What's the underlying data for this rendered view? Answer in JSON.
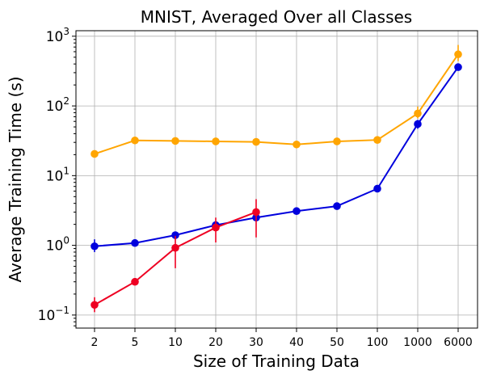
{
  "chart_data": {
    "type": "line",
    "title": "MNIST, Averaged Over all Classes",
    "xlabel": "Size of Training Data",
    "ylabel": "Average Training Time (s)",
    "x_scale": "categorical",
    "y_scale": "log",
    "ylim": [
      0.065,
      1200
    ],
    "grid": true,
    "categories": [
      "2",
      "5",
      "10",
      "20",
      "30",
      "40",
      "50",
      "100",
      "1000",
      "6000"
    ],
    "y_ticks": [
      {
        "value": 0.1,
        "base": "10",
        "exp": "−1"
      },
      {
        "value": 1,
        "base": "10",
        "exp": "0"
      },
      {
        "value": 10,
        "base": "10",
        "exp": "1"
      },
      {
        "value": 100,
        "base": "10",
        "exp": "2"
      },
      {
        "value": 1000,
        "base": "10",
        "exp": "3"
      }
    ],
    "series": [
      {
        "color": "#ffa500",
        "values": [
          20.5,
          32,
          31.5,
          31,
          30.5,
          28,
          31,
          32.5,
          78,
          550
        ],
        "err_low": [
          1.5,
          3,
          2.5,
          3,
          2.5,
          2.5,
          3,
          3,
          12,
          110
        ],
        "err_high": [
          1.5,
          3,
          2.5,
          3,
          2.5,
          2.5,
          3,
          3,
          20,
          200
        ]
      },
      {
        "color": "#0000dd",
        "values": [
          0.97,
          1.08,
          1.4,
          1.95,
          2.5,
          3.1,
          3.65,
          6.5,
          55,
          360
        ],
        "err_low": [
          0.17,
          0.08,
          0.1,
          0.15,
          0.2,
          0.2,
          0.2,
          0.5,
          8,
          30
        ],
        "err_high": [
          0.25,
          0.08,
          0.1,
          0.15,
          0.2,
          0.2,
          0.2,
          0.5,
          8,
          30
        ]
      },
      {
        "color": "#ee0022",
        "values": [
          0.14,
          0.3,
          0.92,
          1.8,
          3.0,
          null,
          null,
          null,
          null,
          null
        ],
        "err_low": [
          0.03,
          0.03,
          0.45,
          0.7,
          1.7,
          null,
          null,
          null,
          null,
          null
        ],
        "err_high": [
          0.04,
          0.03,
          0.45,
          0.7,
          1.6,
          null,
          null,
          null,
          null,
          null
        ]
      }
    ]
  }
}
